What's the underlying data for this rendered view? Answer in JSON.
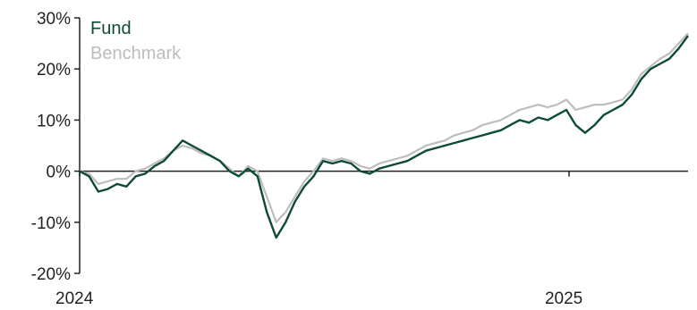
{
  "chart_data": {
    "type": "line",
    "title": "",
    "xlabel": "",
    "ylabel": "",
    "x_ticks": [
      "2024",
      "2025"
    ],
    "y_ticks": [
      "30%",
      "20%",
      "10%",
      "0%",
      "-10%",
      "-20%"
    ],
    "ylim": [
      -20,
      30
    ],
    "x_range": [
      "2024-01-01",
      "2025-03-31"
    ],
    "legend_position": "top-left",
    "colors": {
      "Fund": "#0e4a3a",
      "Benchmark": "#bdbdbd",
      "axis": "#222222"
    },
    "series": [
      {
        "name": "Fund",
        "x": [
          "2024-01-01",
          "2024-01-08",
          "2024-01-15",
          "2024-01-22",
          "2024-01-29",
          "2024-02-05",
          "2024-02-12",
          "2024-02-19",
          "2024-02-26",
          "2024-03-04",
          "2024-03-11",
          "2024-03-18",
          "2024-03-25",
          "2024-04-01",
          "2024-04-08",
          "2024-04-15",
          "2024-04-22",
          "2024-04-29",
          "2024-05-06",
          "2024-05-13",
          "2024-05-20",
          "2024-05-27",
          "2024-06-03",
          "2024-06-10",
          "2024-06-17",
          "2024-06-24",
          "2024-07-01",
          "2024-07-08",
          "2024-07-15",
          "2024-07-22",
          "2024-07-29",
          "2024-08-05",
          "2024-08-12",
          "2024-08-19",
          "2024-08-26",
          "2024-09-02",
          "2024-09-09",
          "2024-09-16",
          "2024-09-23",
          "2024-09-30",
          "2024-10-07",
          "2024-10-14",
          "2024-10-21",
          "2024-10-28",
          "2024-11-04",
          "2024-11-11",
          "2024-11-18",
          "2024-11-25",
          "2024-12-02",
          "2024-12-09",
          "2024-12-16",
          "2024-12-23",
          "2024-12-30",
          "2025-01-06",
          "2025-01-13",
          "2025-01-20",
          "2025-01-27",
          "2025-02-03",
          "2025-02-10",
          "2025-02-17",
          "2025-02-24",
          "2025-03-03",
          "2025-03-10",
          "2025-03-17",
          "2025-03-24",
          "2025-03-31"
        ],
        "values": [
          0,
          -1,
          -4,
          -3.5,
          -2.5,
          -3,
          -1,
          -0.5,
          1,
          2,
          4,
          6,
          5,
          4,
          3,
          2,
          0,
          -1,
          0.5,
          -1,
          -8,
          -13,
          -10,
          -6,
          -3,
          -1,
          2,
          1.5,
          2,
          1.5,
          0,
          -0.5,
          0.5,
          1,
          1.5,
          2,
          3,
          4,
          4.5,
          5,
          5.5,
          6,
          6.5,
          7,
          7.5,
          8,
          9,
          10,
          9.5,
          10.5,
          10,
          11,
          12,
          9,
          7.5,
          9,
          11,
          12,
          13,
          15,
          18,
          20,
          21,
          22,
          24,
          26.5
        ]
      },
      {
        "name": "Benchmark",
        "x": [
          "2024-01-01",
          "2024-01-08",
          "2024-01-15",
          "2024-01-22",
          "2024-01-29",
          "2024-02-05",
          "2024-02-12",
          "2024-02-19",
          "2024-02-26",
          "2024-03-04",
          "2024-03-11",
          "2024-03-18",
          "2024-03-25",
          "2024-04-01",
          "2024-04-08",
          "2024-04-15",
          "2024-04-22",
          "2024-04-29",
          "2024-05-06",
          "2024-05-13",
          "2024-05-20",
          "2024-05-27",
          "2024-06-03",
          "2024-06-10",
          "2024-06-17",
          "2024-06-24",
          "2024-07-01",
          "2024-07-08",
          "2024-07-15",
          "2024-07-22",
          "2024-07-29",
          "2024-08-05",
          "2024-08-12",
          "2024-08-19",
          "2024-08-26",
          "2024-09-02",
          "2024-09-09",
          "2024-09-16",
          "2024-09-23",
          "2024-09-30",
          "2024-10-07",
          "2024-10-14",
          "2024-10-21",
          "2024-10-28",
          "2024-11-04",
          "2024-11-11",
          "2024-11-18",
          "2024-11-25",
          "2024-12-02",
          "2024-12-09",
          "2024-12-16",
          "2024-12-23",
          "2024-12-30",
          "2025-01-06",
          "2025-01-13",
          "2025-01-20",
          "2025-01-27",
          "2025-02-03",
          "2025-02-10",
          "2025-02-17",
          "2025-02-24",
          "2025-03-03",
          "2025-03-10",
          "2025-03-17",
          "2025-03-24",
          "2025-03-31"
        ],
        "values": [
          0,
          -0.5,
          -2.5,
          -2,
          -1.5,
          -1.5,
          0,
          0.5,
          1.5,
          2.5,
          4,
          5,
          4.5,
          3.5,
          3,
          2,
          0.5,
          -1,
          1,
          0,
          -5,
          -10,
          -8,
          -5,
          -2,
          0,
          2.5,
          2,
          2.5,
          2,
          1,
          0.5,
          1.5,
          2,
          2.5,
          3,
          4,
          5,
          5.5,
          6,
          7,
          7.5,
          8,
          9,
          9.5,
          10,
          11,
          12,
          12.5,
          13,
          12.5,
          13,
          14,
          12,
          12.5,
          13,
          13,
          13.5,
          14,
          16,
          19,
          20.5,
          22,
          23,
          25,
          27
        ]
      }
    ]
  }
}
